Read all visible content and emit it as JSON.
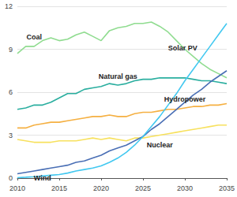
{
  "chart_data": {
    "type": "line",
    "x": [
      2010,
      2011,
      2012,
      2013,
      2014,
      2015,
      2016,
      2017,
      2018,
      2019,
      2020,
      2021,
      2022,
      2023,
      2024,
      2025,
      2026,
      2027,
      2028,
      2029,
      2030,
      2031,
      2032,
      2033,
      2034,
      2035
    ],
    "series": [
      {
        "name": "Coal",
        "color": "#90dc90",
        "values": [
          8.7,
          9.2,
          9.2,
          9.6,
          9.8,
          9.6,
          9.7,
          10.0,
          10.2,
          9.9,
          9.6,
          10.3,
          10.5,
          10.6,
          10.8,
          10.8,
          10.9,
          10.6,
          10.2,
          9.6,
          9.0,
          8.5,
          8.0,
          7.6,
          7.3,
          7.0
        ]
      },
      {
        "name": "Natural gas",
        "color": "#2aae9f",
        "values": [
          4.8,
          4.9,
          5.1,
          5.1,
          5.3,
          5.6,
          5.9,
          5.9,
          6.2,
          6.3,
          6.4,
          6.6,
          6.5,
          6.6,
          6.8,
          6.9,
          6.9,
          7.0,
          7.0,
          7.0,
          7.0,
          6.9,
          6.8,
          6.8,
          6.7,
          6.6
        ]
      },
      {
        "name": "Hydropower",
        "color": "#f5b042",
        "values": [
          3.5,
          3.5,
          3.7,
          3.8,
          3.9,
          3.9,
          4.0,
          4.1,
          4.2,
          4.3,
          4.3,
          4.4,
          4.3,
          4.3,
          4.5,
          4.6,
          4.6,
          4.7,
          4.8,
          4.8,
          4.9,
          5.0,
          5.0,
          5.1,
          5.1,
          5.2
        ]
      },
      {
        "name": "Nuclear",
        "color": "#f7e15e",
        "values": [
          2.7,
          2.6,
          2.5,
          2.5,
          2.5,
          2.6,
          2.6,
          2.6,
          2.7,
          2.8,
          2.7,
          2.8,
          2.7,
          2.6,
          2.8,
          2.8,
          2.9,
          3.0,
          3.1,
          3.2,
          3.3,
          3.4,
          3.5,
          3.6,
          3.7,
          3.7
        ]
      },
      {
        "name": "Wind",
        "color": "#4a6fb5",
        "values": [
          0.3,
          0.4,
          0.5,
          0.6,
          0.7,
          0.8,
          0.9,
          1.1,
          1.2,
          1.4,
          1.6,
          1.9,
          2.1,
          2.3,
          2.6,
          2.9,
          3.4,
          3.8,
          4.3,
          4.8,
          5.3,
          5.8,
          6.2,
          6.7,
          7.1,
          7.5
        ]
      },
      {
        "name": "Solar PV",
        "color": "#42c8f0",
        "values": [
          0.03,
          0.06,
          0.1,
          0.15,
          0.2,
          0.25,
          0.35,
          0.5,
          0.6,
          0.7,
          0.85,
          1.1,
          1.4,
          1.8,
          2.3,
          2.9,
          3.6,
          4.3,
          5.1,
          5.9,
          6.8,
          7.6,
          8.4,
          9.2,
          10.0,
          10.8
        ]
      }
    ],
    "xlim": [
      2010,
      2035
    ],
    "xticks": [
      2010,
      2015,
      2020,
      2025,
      2030,
      2035
    ],
    "ylim": [
      0,
      12
    ],
    "yticks": [
      0,
      3,
      6,
      9,
      12
    ],
    "grid": true
  }
}
